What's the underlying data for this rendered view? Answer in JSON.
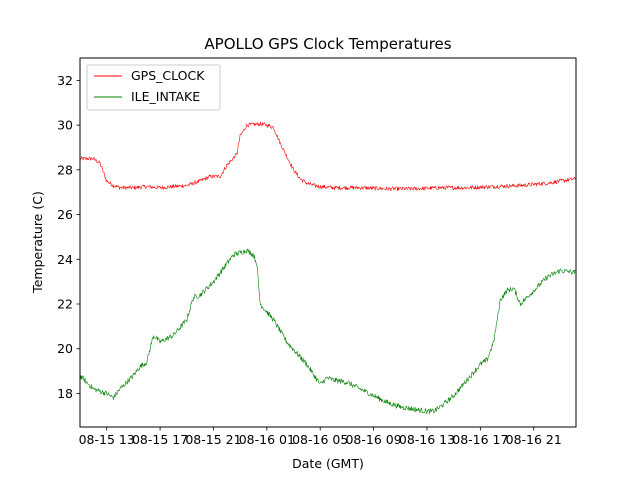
{
  "chart_data": {
    "type": "line",
    "title": "APOLLO GPS Clock Temperatures",
    "xlabel": "Date (GMT)",
    "ylabel": "Temperature (C)",
    "xlim": [
      "08-15 11:00",
      "08-17 00:10"
    ],
    "ylim": [
      16.5,
      33
    ],
    "grid": false,
    "legend_placement": "upper-left",
    "y_ticks": [
      18,
      20,
      22,
      24,
      26,
      28,
      30,
      32
    ],
    "x_ticks": [
      {
        "x": "08-15 13:00",
        "label": "08-15 13"
      },
      {
        "x": "08-15 17:00",
        "label": "08-15 17"
      },
      {
        "x": "08-15 21:00",
        "label": "08-15 21"
      },
      {
        "x": "08-16 01:00",
        "label": "08-16 01"
      },
      {
        "x": "08-16 05:00",
        "label": "08-16 05"
      },
      {
        "x": "08-16 09:00",
        "label": "08-16 09"
      },
      {
        "x": "08-16 13:00",
        "label": "08-16 13"
      },
      {
        "x": "08-16 17:00",
        "label": "08-16 17"
      },
      {
        "x": "08-16 21:00",
        "label": "08-16 21"
      }
    ],
    "series": [
      {
        "name": "GPS_CLOCK",
        "color": "#ff0000",
        "x": [
          "08-15 11:00",
          "08-15 12:00",
          "08-15 12:30",
          "08-15 13:00",
          "08-15 13:30",
          "08-15 14:00",
          "08-15 15:00",
          "08-15 16:00",
          "08-15 17:00",
          "08-15 18:00",
          "08-15 19:00",
          "08-15 20:00",
          "08-15 20:45",
          "08-15 21:30",
          "08-15 22:00",
          "08-15 22:45",
          "08-15 23:00",
          "08-15 23:30",
          "08-16 00:30",
          "08-16 01:00",
          "08-16 01:30",
          "08-16 02:00",
          "08-16 02:30",
          "08-16 03:00",
          "08-16 03:30",
          "08-16 04:00",
          "08-16 04:30",
          "08-16 05:00",
          "08-16 06:00",
          "08-16 08:00",
          "08-16 10:00",
          "08-16 12:00",
          "08-16 14:00",
          "08-16 16:00",
          "08-16 18:00",
          "08-16 20:00",
          "08-16 22:00",
          "08-16 23:00",
          "08-17 00:10"
        ],
        "values": [
          28.5,
          28.5,
          28.3,
          27.5,
          27.3,
          27.2,
          27.2,
          27.25,
          27.2,
          27.25,
          27.3,
          27.5,
          27.7,
          27.7,
          28.2,
          28.7,
          29.5,
          30.0,
          30.05,
          30.0,
          29.9,
          29.2,
          28.6,
          28.0,
          27.6,
          27.4,
          27.3,
          27.25,
          27.2,
          27.2,
          27.15,
          27.15,
          27.2,
          27.2,
          27.25,
          27.3,
          27.4,
          27.5,
          27.6
        ]
      },
      {
        "name": "ILE_INTAKE",
        "color": "#008000",
        "x": [
          "08-15 11:00",
          "08-15 12:00",
          "08-15 13:00",
          "08-15 13:30",
          "08-15 14:00",
          "08-15 15:00",
          "08-15 15:30",
          "08-15 16:00",
          "08-15 16:30",
          "08-15 17:00",
          "08-15 18:00",
          "08-15 19:00",
          "08-15 19:30",
          "08-15 20:00",
          "08-15 21:00",
          "08-15 22:00",
          "08-15 22:30",
          "08-15 23:30",
          "08-16 00:00",
          "08-16 00:15",
          "08-16 00:30",
          "08-16 01:30",
          "08-16 02:30",
          "08-16 04:00",
          "08-16 05:00",
          "08-16 05:30",
          "08-16 06:00",
          "08-16 07:00",
          "08-16 08:00",
          "08-16 09:00",
          "08-16 10:00",
          "08-16 11:00",
          "08-16 12:00",
          "08-16 13:00",
          "08-16 13:30",
          "08-16 14:00",
          "08-16 15:00",
          "08-16 16:00",
          "08-16 17:00",
          "08-16 17:30",
          "08-16 18:00",
          "08-16 18:30",
          "08-16 19:00",
          "08-16 19:30",
          "08-16 20:00",
          "08-16 20:30",
          "08-16 21:00",
          "08-16 22:00",
          "08-16 23:00",
          "08-17 00:10"
        ],
        "values": [
          18.8,
          18.2,
          18.0,
          17.8,
          18.2,
          18.8,
          19.2,
          19.4,
          20.6,
          20.3,
          20.6,
          21.3,
          22.3,
          22.4,
          23.0,
          23.8,
          24.2,
          24.4,
          24.2,
          23.8,
          22.0,
          21.3,
          20.3,
          19.3,
          18.4,
          18.7,
          18.6,
          18.5,
          18.2,
          17.9,
          17.6,
          17.4,
          17.3,
          17.2,
          17.2,
          17.4,
          17.9,
          18.6,
          19.3,
          19.5,
          20.3,
          22.2,
          22.6,
          22.7,
          22.0,
          22.3,
          22.6,
          23.2,
          23.5,
          23.4
        ]
      }
    ]
  }
}
